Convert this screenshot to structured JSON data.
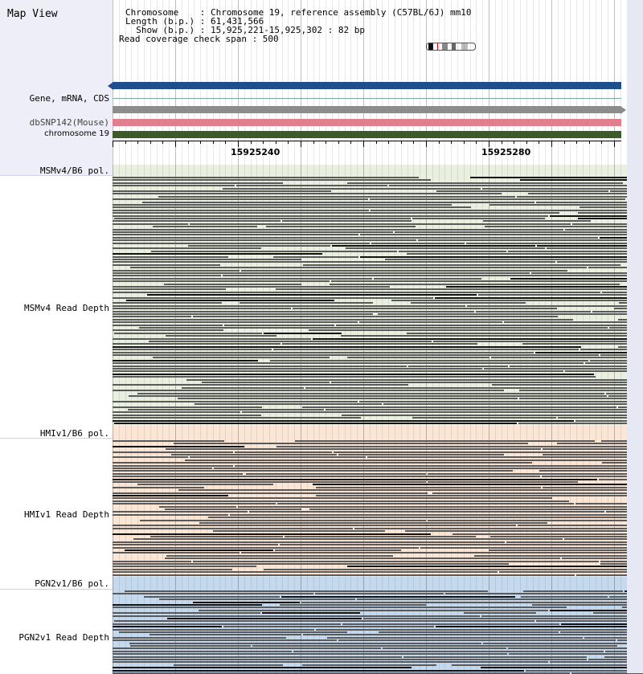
{
  "map_title": "Map View",
  "info": {
    "chromosome_label": "Chromosome    : Chromosome 19, reference assembly (C57BL/6J) mm10",
    "length_label": "Length (b.p.) : 61,431,566",
    "show_label": "  Show (b.p.) : 15,925,221-15,925,302 : 82 bp",
    "coverage_label": "Read coverage check span : 500"
  },
  "tracks": {
    "gene_label": "Gene, mRNA, CDS",
    "dbsnp_label": "dbSNP142(Mouse)",
    "chromosome_label": "chromosome 19"
  },
  "axis": {
    "tick1": "15925240",
    "tick2": "15925280"
  },
  "lanes": {
    "msm_pol": "MSMv4/B6 pol.",
    "msm_depth": "MSMv4 Read Depth",
    "hmi_pol": "HMIv1/B6 pol.",
    "hmi_depth": "HMIv1 Read Depth",
    "pgn_pol": "PGN2v1/B6 pol.",
    "pgn_depth": "PGN2v1 Read Depth"
  },
  "colors": {
    "gene_track": "#1f4e8c",
    "dbsnp_track": "#e0808c",
    "chromosome_track": "#3d5a2a",
    "msm_bg": "#eaf0e0",
    "hmi_bg": "#fbe6d6",
    "pgn_bg": "#c4d8ee",
    "read": "#5a5a5a"
  }
}
